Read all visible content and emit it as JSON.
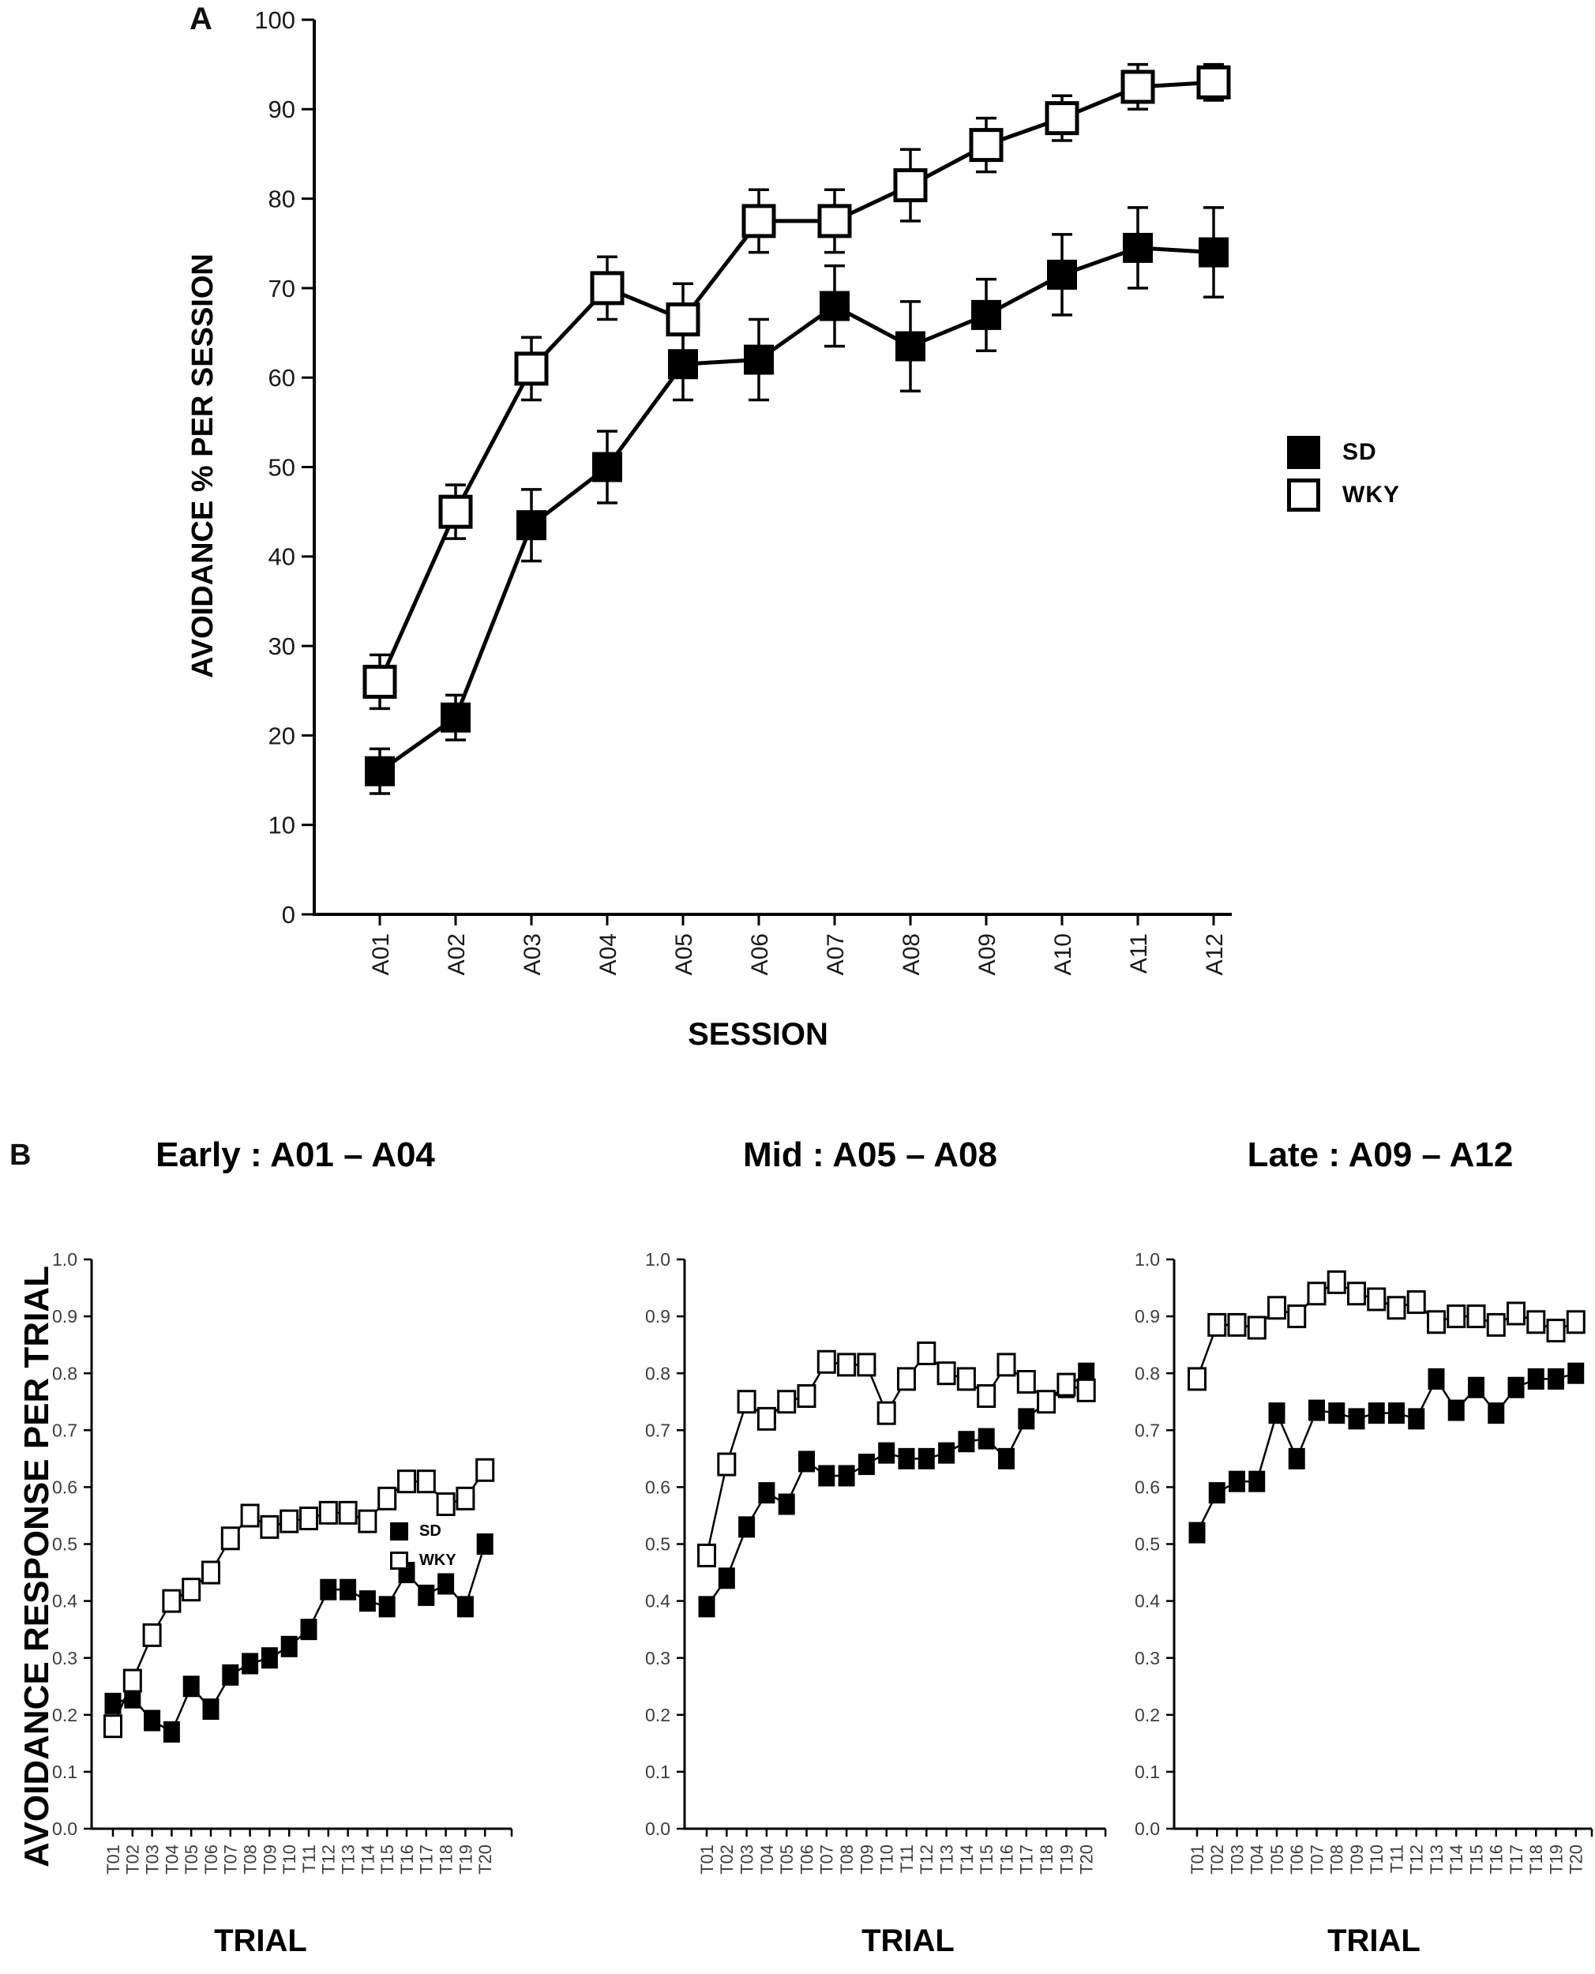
{
  "ui": {
    "panel_a_label": "A",
    "panel_b_label": "B",
    "trial_label": "TRIAL",
    "session_label": "SESSION"
  },
  "chart_data": [
    {
      "id": "panelA",
      "type": "line",
      "panel": "A",
      "title": "",
      "xlabel": "SESSION",
      "ylabel": "AVOIDANCE % PER SESSION",
      "categories": [
        "A01",
        "A02",
        "A03",
        "A04",
        "A05",
        "A06",
        "A07",
        "A08",
        "A09",
        "A10",
        "A11",
        "A12"
      ],
      "ylim": [
        0,
        100
      ],
      "ytick_step": 10,
      "ytick_decimals": 0,
      "yticks": [
        0,
        10,
        20,
        30,
        40,
        50,
        60,
        70,
        80,
        90,
        100
      ],
      "grid": false,
      "legend_position": "right-outside",
      "series": [
        {
          "name": "SD",
          "marker": "filled-square",
          "values": [
            16,
            22,
            43.5,
            50,
            61.5,
            62,
            68,
            63.5,
            67,
            71.5,
            74.5,
            74
          ],
          "errors": [
            2.5,
            2.5,
            4,
            4,
            4,
            4.5,
            4.5,
            5,
            4,
            4.5,
            4.5,
            5
          ]
        },
        {
          "name": "WKY",
          "marker": "open-square",
          "values": [
            26,
            45,
            61,
            70,
            66.5,
            77.5,
            77.5,
            81.5,
            86,
            89,
            92.5,
            93
          ],
          "errors": [
            3,
            3,
            3.5,
            3.5,
            4,
            3.5,
            3.5,
            4,
            3,
            2.5,
            2.5,
            2
          ]
        }
      ]
    },
    {
      "id": "earlyB",
      "type": "line",
      "panel": "B",
      "title": "Early : A01 – A04",
      "xlabel": "TRIAL",
      "ylabel": "AVOIDANCE RESPONSE PER TRIAL",
      "categories": [
        "T01",
        "T02",
        "T03",
        "T04",
        "T05",
        "T06",
        "T07",
        "T08",
        "T09",
        "T10",
        "T11",
        "T12",
        "T13",
        "T14",
        "T15",
        "T16",
        "T17",
        "T18",
        "T19",
        "T20"
      ],
      "ylim": [
        0.0,
        1.0
      ],
      "ytick_step": 0.1,
      "ytick_decimals": 1,
      "yticks": [
        0.0,
        0.1,
        0.2,
        0.3,
        0.4,
        0.5,
        0.6,
        0.7,
        0.8,
        0.9,
        1.0
      ],
      "grid": false,
      "legend_position": "inside-right",
      "series": [
        {
          "name": "SD",
          "marker": "filled-square",
          "values": [
            0.22,
            0.23,
            0.19,
            0.17,
            0.25,
            0.21,
            0.27,
            0.29,
            0.3,
            0.32,
            0.35,
            0.42,
            0.42,
            0.4,
            0.39,
            0.45,
            0.41,
            0.43,
            0.39,
            0.5
          ]
        },
        {
          "name": "WKY",
          "marker": "open-square",
          "values": [
            0.18,
            0.26,
            0.34,
            0.4,
            0.42,
            0.45,
            0.51,
            0.55,
            0.53,
            0.54,
            0.545,
            0.555,
            0.555,
            0.54,
            0.58,
            0.61,
            0.61,
            0.57,
            0.58,
            0.63
          ]
        }
      ]
    },
    {
      "id": "midB",
      "type": "line",
      "panel": "B",
      "title": "Mid : A05 – A08",
      "xlabel": "TRIAL",
      "ylabel": "AVOIDANCE RESPONSE PER TRIAL",
      "categories": [
        "T01",
        "T02",
        "T03",
        "T04",
        "T05",
        "T06",
        "T07",
        "T08",
        "T09",
        "T10",
        "T11",
        "T12",
        "T13",
        "T14",
        "T15",
        "T16",
        "T17",
        "T18",
        "T19",
        "T20"
      ],
      "ylim": [
        0.0,
        1.0
      ],
      "ytick_step": 0.1,
      "ytick_decimals": 1,
      "yticks": [
        0.0,
        0.1,
        0.2,
        0.3,
        0.4,
        0.5,
        0.6,
        0.7,
        0.8,
        0.9,
        1.0
      ],
      "grid": false,
      "legend_position": "none",
      "series": [
        {
          "name": "SD",
          "marker": "filled-square",
          "values": [
            0.39,
            0.44,
            0.53,
            0.59,
            0.57,
            0.645,
            0.62,
            0.62,
            0.64,
            0.66,
            0.65,
            0.65,
            0.66,
            0.68,
            0.685,
            0.65,
            0.72,
            0.75,
            0.775,
            0.8
          ]
        },
        {
          "name": "WKY",
          "marker": "open-square",
          "values": [
            0.48,
            0.64,
            0.75,
            0.72,
            0.75,
            0.76,
            0.82,
            0.815,
            0.815,
            0.73,
            0.79,
            0.835,
            0.8,
            0.79,
            0.76,
            0.815,
            0.785,
            0.75,
            0.78,
            0.77
          ]
        }
      ]
    },
    {
      "id": "lateB",
      "type": "line",
      "panel": "B",
      "title": "Late : A09 – A12",
      "xlabel": "TRIAL",
      "ylabel": "AVOIDANCE RESPONSE PER TRIAL",
      "categories": [
        "T01",
        "T02",
        "T03",
        "T04",
        "T05",
        "T06",
        "T07",
        "T08",
        "T09",
        "T10",
        "T11",
        "T12",
        "T13",
        "T14",
        "T15",
        "T16",
        "T17",
        "T18",
        "T19",
        "T20"
      ],
      "ylim": [
        0.0,
        1.0
      ],
      "ytick_step": 0.1,
      "ytick_decimals": 1,
      "yticks": [
        0.0,
        0.1,
        0.2,
        0.3,
        0.4,
        0.5,
        0.6,
        0.7,
        0.8,
        0.9,
        1.0
      ],
      "grid": false,
      "legend_position": "none",
      "series": [
        {
          "name": "SD",
          "marker": "filled-square",
          "values": [
            0.52,
            0.59,
            0.61,
            0.61,
            0.73,
            0.65,
            0.735,
            0.73,
            0.72,
            0.73,
            0.73,
            0.72,
            0.79,
            0.735,
            0.775,
            0.73,
            0.775,
            0.79,
            0.79,
            0.8
          ]
        },
        {
          "name": "WKY",
          "marker": "open-square",
          "values": [
            0.79,
            0.885,
            0.885,
            0.88,
            0.915,
            0.9,
            0.94,
            0.96,
            0.94,
            0.93,
            0.915,
            0.925,
            0.89,
            0.9,
            0.9,
            0.885,
            0.905,
            0.89,
            0.875,
            0.89
          ]
        }
      ]
    }
  ]
}
